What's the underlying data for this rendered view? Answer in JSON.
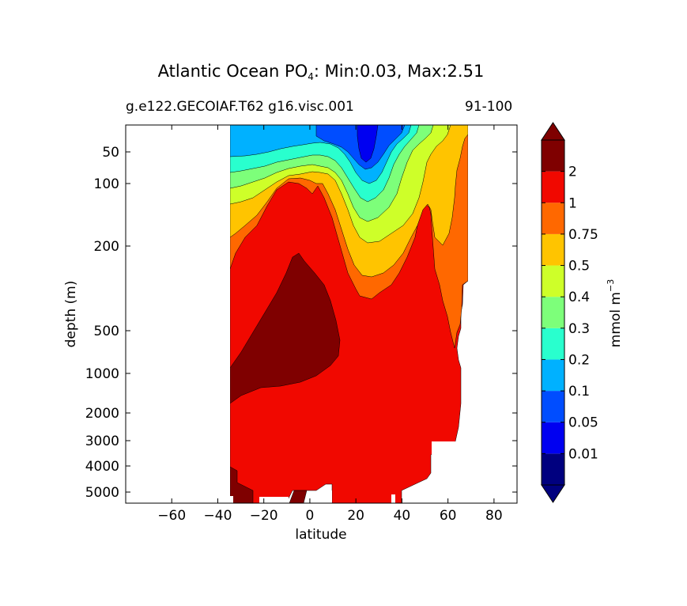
{
  "title_prefix": "Atlantic Ocean PO",
  "title_subscript": "4",
  "title_suffix": ": Min:0.03, Max:2.51",
  "left_title": "g.e122.GECOIAF.T62 g16.visc.001",
  "right_title": "91-100",
  "chart_data": {
    "type": "contourf",
    "variable": "PO4",
    "region": "Atlantic Ocean",
    "min": 0.03,
    "max": 2.51,
    "xlabel": "latitude",
    "ylabel": "depth (m)",
    "xlim": [
      -80,
      90
    ],
    "x_ticks": [
      -60,
      -40,
      -20,
      0,
      20,
      40,
      60,
      80
    ],
    "x_tick_labels": [
      "−60",
      "−40",
      "−20",
      "0",
      "20",
      "40",
      "60",
      "80"
    ],
    "ylim": [
      5500,
      0
    ],
    "y_ticks": [
      50,
      100,
      200,
      500,
      1000,
      2000,
      3000,
      4000,
      5000
    ],
    "y_tick_labels": [
      "50",
      "100",
      "200",
      "500",
      "1000",
      "2000",
      "3000",
      "4000",
      "5000"
    ],
    "y_scale": "nonlinear (compressed deep ocean)",
    "data_lat_range": [
      -34,
      68
    ],
    "colorbar": {
      "label": "mmol m",
      "label_superscript": "−3",
      "extend": "both",
      "levels": [
        0.01,
        0.05,
        0.1,
        0.2,
        0.3,
        0.4,
        0.5,
        0.75,
        1,
        2
      ],
      "tick_labels": [
        "0.01",
        "0.05",
        "0.1",
        "0.2",
        "0.3",
        "0.4",
        "0.5",
        "0.75",
        "1",
        "2"
      ],
      "colors": [
        "#00007f",
        "#0000f1",
        "#004dff",
        "#00b1ff",
        "#29ffce",
        "#7dff7a",
        "#ceff29",
        "#ffc400",
        "#ff6800",
        "#f10800",
        "#7f0000"
      ]
    },
    "contour_regions": [
      {
        "value_band": "0.05-0.1",
        "color": "#004dff",
        "description": "surface subtropical minimum near 20-30N, upper 100 m"
      },
      {
        "value_band": "0.01-0.05",
        "color": "#0000f1",
        "description": "core of subtropical surface minimum near 25N"
      },
      {
        "value_band": "0.1-0.5",
        "color": "#29ffce",
        "description": "surface layers south of equator and north of 35N"
      },
      {
        "value_band": "0.5-0.75",
        "color": "#ffc400",
        "description": "thermocline near 100-300 m"
      },
      {
        "value_band": "1-2",
        "color": "#f10800",
        "description": "intermediate and deep waters"
      },
      {
        "value_band": ">2",
        "color": "#7f0000",
        "description": "Antarctic Intermediate Water tongue, 300-1500 m near 30S-10N"
      }
    ]
  }
}
